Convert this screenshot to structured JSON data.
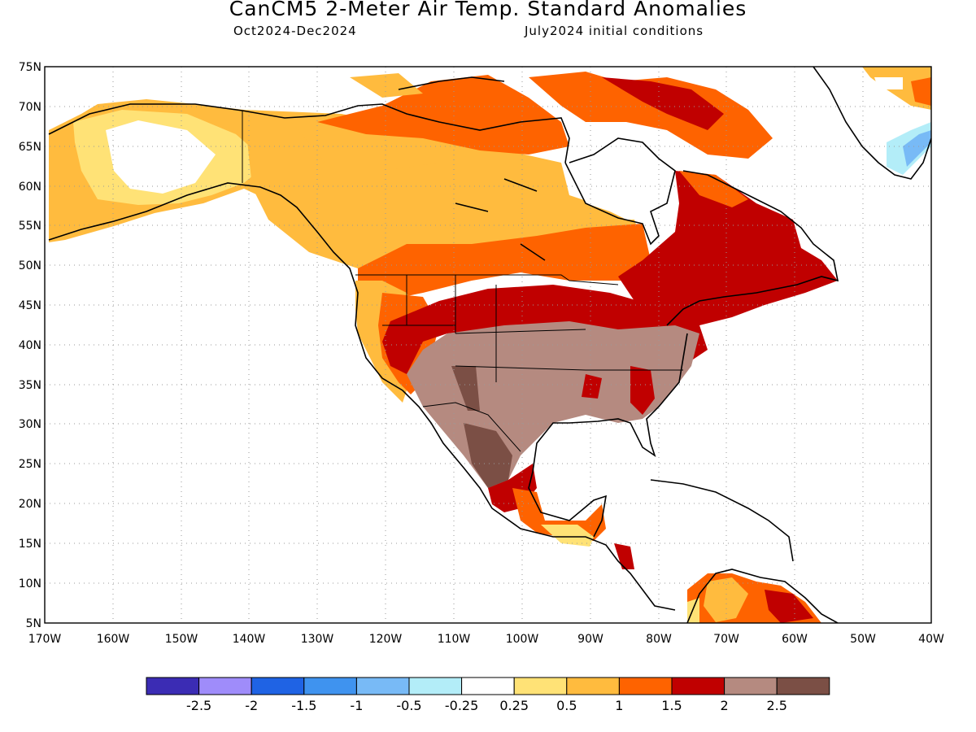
{
  "title": "CanCM5 2-Meter Air Temp. Standard Anomalies",
  "subtitle_left": "Oct2024-Dec2024",
  "subtitle_right": "July2024 initial conditions",
  "lat_labels": [
    "75N",
    "70N",
    "65N",
    "60N",
    "55N",
    "50N",
    "45N",
    "40N",
    "35N",
    "30N",
    "25N",
    "20N",
    "15N",
    "10N",
    "5N"
  ],
  "lon_labels": [
    "170W",
    "160W",
    "150W",
    "140W",
    "130W",
    "120W",
    "110W",
    "100W",
    "90W",
    "80W",
    "70W",
    "60W",
    "50W",
    "40W"
  ],
  "legend": {
    "colors": [
      "#3b2cb4",
      "#9f8cfa",
      "#1f63e4",
      "#3f93ef",
      "#78baf6",
      "#b3edf8",
      "#ffffff",
      "#ffe276",
      "#ffbb3e",
      "#fe6300",
      "#c00000",
      "#b58a80",
      "#7b4f45"
    ],
    "labels": [
      "-2.5",
      "-2",
      "-1.5",
      "-1",
      "-0.5",
      "-0.25",
      "0.25",
      "0.5",
      "1",
      "1.5",
      "2",
      "2.5"
    ]
  }
}
